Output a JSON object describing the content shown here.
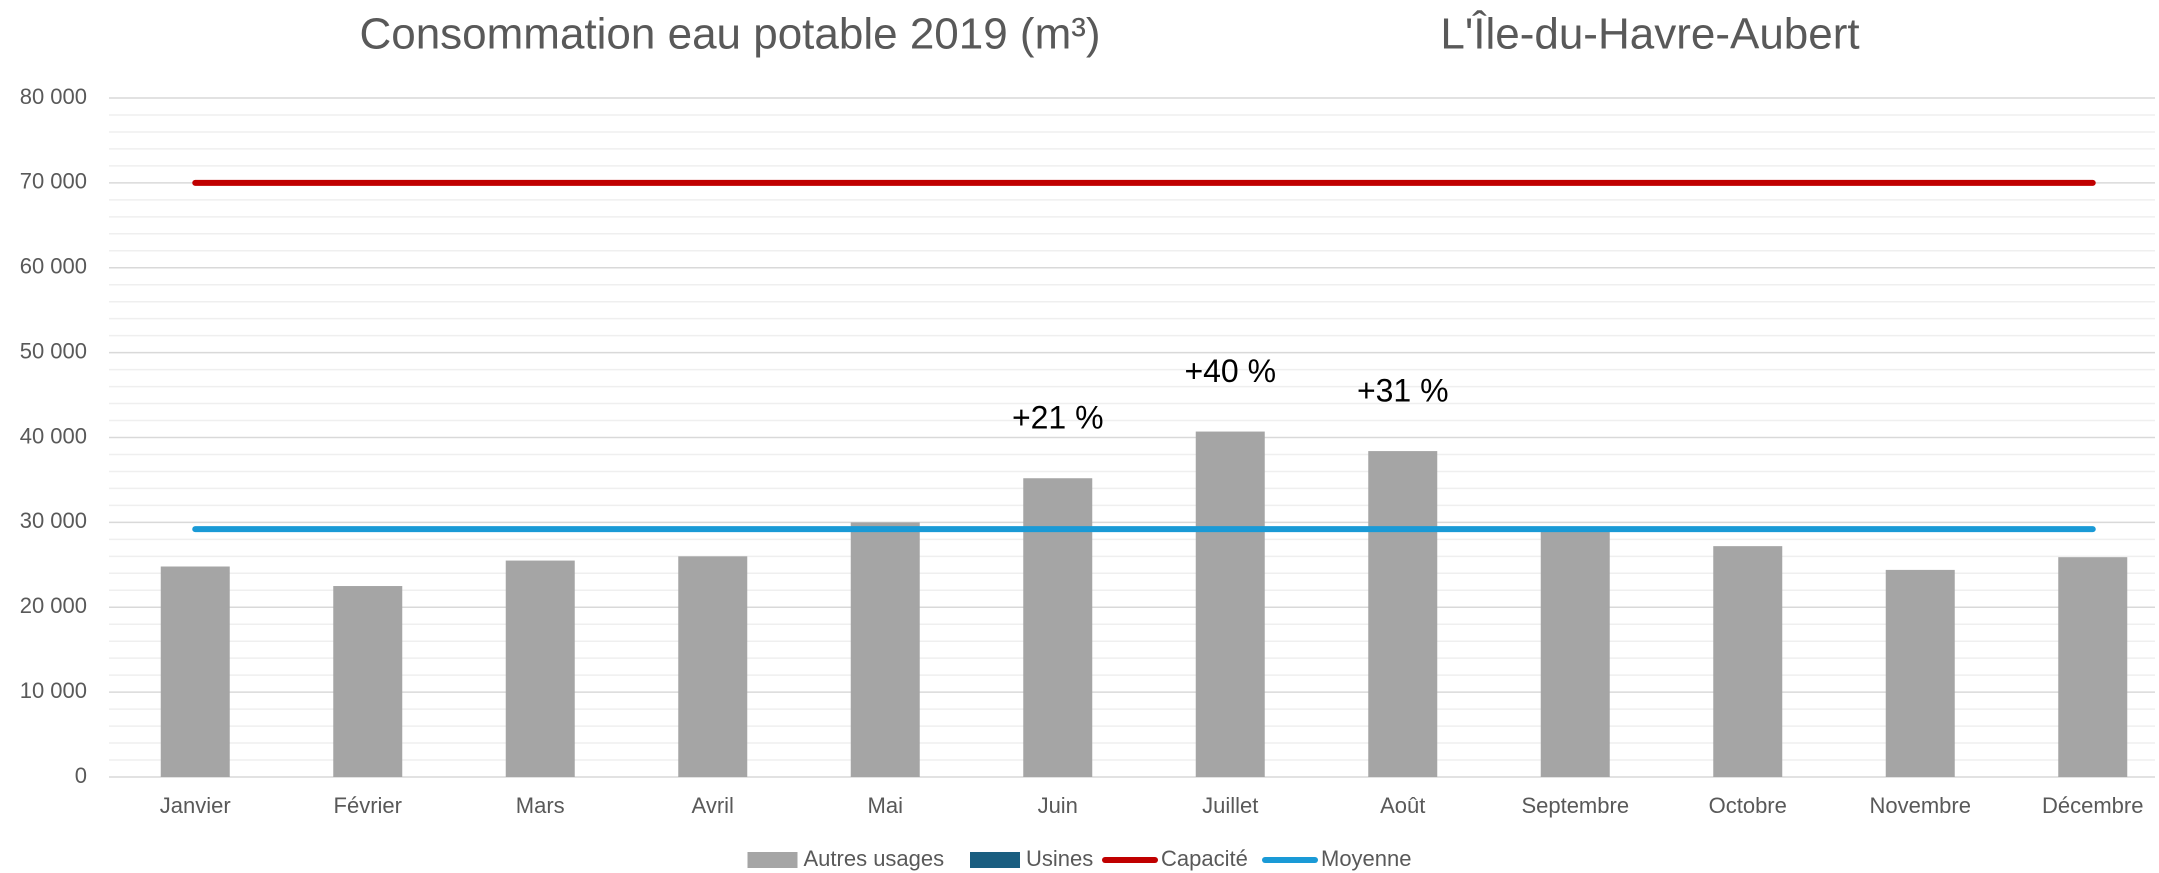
{
  "chart_data": {
    "type": "bar",
    "title": "Consommation eau potable 2019 (m³)",
    "subtitle": "L'Île-du-Havre-Aubert",
    "categories": [
      "Janvier",
      "Février",
      "Mars",
      "Avril",
      "Mai",
      "Juin",
      "Juillet",
      "Août",
      "Septembre",
      "Octobre",
      "Novembre",
      "Décembre"
    ],
    "series": [
      {
        "name": "Autres usages",
        "type": "bar",
        "color": "#a5a5a5",
        "values": [
          24800,
          22500,
          25500,
          26000,
          30000,
          35200,
          40700,
          38400,
          29500,
          27200,
          24400,
          25900
        ]
      },
      {
        "name": "Usines",
        "type": "bar",
        "color": "#1a5e80",
        "values": [
          null,
          null,
          null,
          null,
          null,
          null,
          null,
          null,
          null,
          null,
          null,
          null
        ]
      },
      {
        "name": "Capacité",
        "type": "line",
        "color": "#c00000",
        "values": [
          70000,
          70000,
          70000,
          70000,
          70000,
          70000,
          70000,
          70000,
          70000,
          70000,
          70000,
          70000
        ]
      },
      {
        "name": "Moyenne",
        "type": "line",
        "color": "#1a9ad6",
        "values": [
          29200,
          29200,
          29200,
          29200,
          29200,
          29200,
          29200,
          29200,
          29200,
          29200,
          29200,
          29200
        ]
      }
    ],
    "annotations": [
      {
        "text": "+21 %",
        "x": "Juin"
      },
      {
        "text": "+40 %",
        "x": "Juillet"
      },
      {
        "text": "+31 %",
        "x": "Août"
      }
    ],
    "ylim": [
      0,
      80000
    ],
    "yticks": [
      0,
      {
        "value": 10000,
        "label": "10 000"
      },
      {
        "value": 20000,
        "label": "20 000"
      },
      {
        "value": 30000,
        "label": "30 000"
      },
      {
        "value": 40000,
        "label": "40 000"
      },
      {
        "value": 50000,
        "label": "50 000"
      },
      {
        "value": 60000,
        "label": "60 000"
      },
      {
        "value": 70000,
        "label": "70 000"
      },
      {
        "value": 80000,
        "label": "80 000"
      }
    ],
    "grid": true,
    "legend": "bottom"
  }
}
